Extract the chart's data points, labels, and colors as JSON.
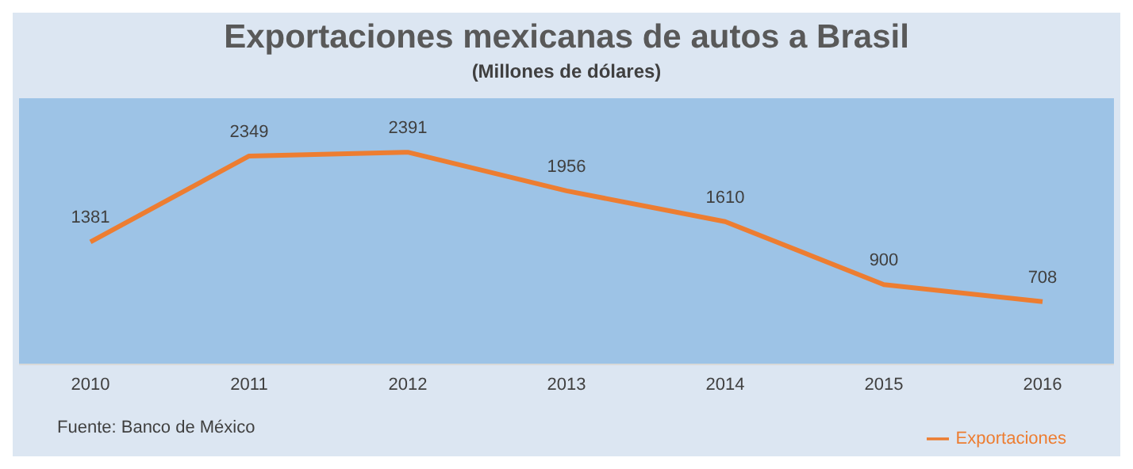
{
  "chart_data": {
    "type": "line",
    "title": "Exportaciones  mexicanas de autos a Brasil",
    "subtitle": "(Millones de dólares)",
    "categories": [
      "2010",
      "2011",
      "2012",
      "2013",
      "2014",
      "2015",
      "2016"
    ],
    "series": [
      {
        "name": "Exportaciones",
        "color": "#ed7d31",
        "values": [
          1381,
          2349,
          2391,
          1956,
          1610,
          900,
          708
        ]
      }
    ],
    "ylim": [
      0,
      3000
    ],
    "tick_labels": "x",
    "data_labels": true,
    "grid": false,
    "legend": "bottom right",
    "marker": "none",
    "line_style": "solid",
    "annotations": [
      "Fuente: Banco de México"
    ]
  }
}
